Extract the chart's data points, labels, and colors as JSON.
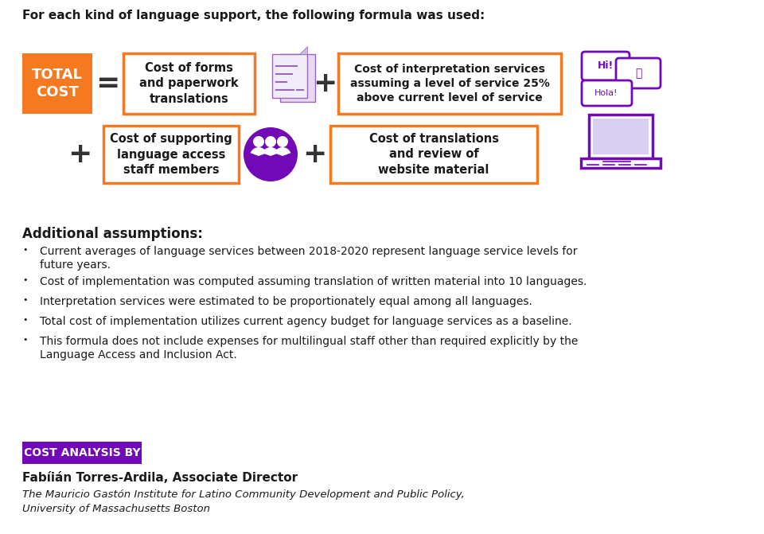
{
  "background_color": "#ffffff",
  "header_text": "For each kind of language support, the following formula was used:",
  "total_cost_label": "TOTAL\nCOST",
  "total_cost_bg": "#f47920",
  "total_cost_text_color": "#ffffff",
  "box_border_color": "#f47920",
  "box_fill_color": "#ffffff",
  "box_text_color": "#000000",
  "box1_text": "Cost of forms\nand paperwork\ntranslations",
  "box2_text": "Cost of interpretation services\nassuming a level of service 25%\nabove current level of service",
  "box3_text": "Cost of supporting\nlanguage access\nstaff members",
  "box4_text": "Cost of translations\nand review of\nwebsite material",
  "equals_sign": "=",
  "plus_sign": "+",
  "operator_color": "#000000",
  "section_title": "Additional assumptions:",
  "bullet1_line1": "Current averages of language services between 2018-2020 represent language service levels for",
  "bullet1_line2": "future years.",
  "bullet2": "Cost of implementation was computed assuming translation of written material into 10 languages.",
  "bullet3": "Interpretation services were estimated to be proportionately equal among all languages.",
  "bullet4": "Total cost of implementation utilizes current agency budget for language services as a baseline.",
  "bullet5_line1": "This formula does not include expenses for multilingual staff other than required explicitly by the",
  "bullet5_line2": "Language Access and Inclusion Act.",
  "cost_analysis_label": "COST ANALYSIS BY",
  "cost_analysis_bg": "#7209b7",
  "cost_analysis_text_color": "#ffffff",
  "author_name": "Fabíián Torres-Ardila, Associate Director",
  "author_institute": "The Mauricio Gastón Institute for Latino Community Development and Public Policy,",
  "author_university": "University of Massachusetts Boston",
  "purple_color": "#7209b7",
  "orange_color": "#f47920"
}
